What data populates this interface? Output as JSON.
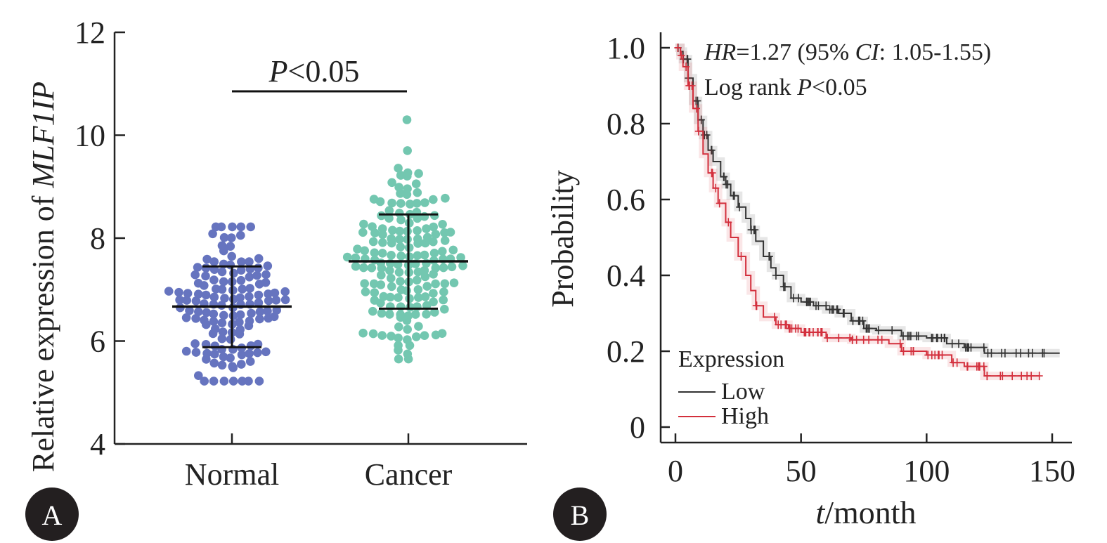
{
  "chart_data": [
    {
      "panel_label": "A",
      "type": "scatter",
      "ylabel_prefix": "Relative expression of ",
      "ylabel_gene": "MLF1IP",
      "categories": [
        "Normal",
        "Cancer"
      ],
      "yticks": [
        "4",
        "6",
        "8",
        "10",
        "12"
      ],
      "ylim": [
        4,
        12
      ],
      "stat": {
        "p_italic": "P",
        "p_rest": "<0.05"
      },
      "groups": [
        {
          "name": "Normal",
          "color": "#6674bf",
          "mean": 6.67,
          "sd_low": 5.88,
          "sd_high": 7.45,
          "min": 5.22,
          "max": 8.22,
          "n": 140
        },
        {
          "name": "Cancer",
          "color": "#73c7b0",
          "mean": 7.55,
          "sd_low": 6.63,
          "sd_high": 8.46,
          "min": 5.65,
          "max": 10.3,
          "n": 170
        }
      ]
    },
    {
      "panel_label": "B",
      "type": "line",
      "ylabel": "Probability",
      "xlabel_italic": "t",
      "xlabel_rest": "/month",
      "xticks": [
        "0",
        "50",
        "100",
        "150"
      ],
      "yticks": [
        "0",
        "0.2",
        "0.4",
        "0.6",
        "0.8",
        "1.0"
      ],
      "xlim": [
        0,
        155
      ],
      "ylim": [
        0,
        1.0
      ],
      "annotations": {
        "hr_italic": "HR",
        "hr_mid": "=1.27 (95% ",
        "ci_italic": "CI",
        "ci_rest": ": 1.05-1.55)",
        "logrank_prefix": "Log rank ",
        "logrank_italic": "P",
        "logrank_rest": "<0.05"
      },
      "legend": {
        "title": "Expression",
        "placement": "bottom-left"
      },
      "series": [
        {
          "name": "Low",
          "color": "#333333",
          "points": [
            [
              0,
              1.0
            ],
            [
              2,
              0.99
            ],
            [
              3,
              0.97
            ],
            [
              5,
              0.92
            ],
            [
              7,
              0.86
            ],
            [
              9,
              0.81
            ],
            [
              11,
              0.77
            ],
            [
              13,
              0.73
            ],
            [
              15,
              0.7
            ],
            [
              18,
              0.66
            ],
            [
              20,
              0.64
            ],
            [
              22,
              0.61
            ],
            [
              25,
              0.58
            ],
            [
              28,
              0.55
            ],
            [
              30,
              0.52
            ],
            [
              32,
              0.49
            ],
            [
              35,
              0.45
            ],
            [
              38,
              0.42
            ],
            [
              40,
              0.4
            ],
            [
              43,
              0.37
            ],
            [
              46,
              0.34
            ],
            [
              50,
              0.33
            ],
            [
              55,
              0.32
            ],
            [
              60,
              0.31
            ],
            [
              65,
              0.3
            ],
            [
              70,
              0.28
            ],
            [
              75,
              0.26
            ],
            [
              80,
              0.255
            ],
            [
              90,
              0.24
            ],
            [
              100,
              0.235
            ],
            [
              108,
              0.22
            ],
            [
              115,
              0.21
            ],
            [
              123,
              0.195
            ],
            [
              153,
              0.195
            ]
          ]
        },
        {
          "name": "High",
          "color": "#d32f3c",
          "points": [
            [
              0,
              1.0
            ],
            [
              2,
              0.98
            ],
            [
              3,
              0.95
            ],
            [
              5,
              0.9
            ],
            [
              7,
              0.84
            ],
            [
              9,
              0.78
            ],
            [
              11,
              0.72
            ],
            [
              13,
              0.67
            ],
            [
              15,
              0.63
            ],
            [
              17,
              0.59
            ],
            [
              20,
              0.54
            ],
            [
              22,
              0.5
            ],
            [
              25,
              0.45
            ],
            [
              28,
              0.4
            ],
            [
              30,
              0.36
            ],
            [
              32,
              0.32
            ],
            [
              35,
              0.29
            ],
            [
              40,
              0.27
            ],
            [
              45,
              0.26
            ],
            [
              50,
              0.25
            ],
            [
              60,
              0.235
            ],
            [
              70,
              0.23
            ],
            [
              80,
              0.23
            ],
            [
              85,
              0.22
            ],
            [
              90,
              0.2
            ],
            [
              100,
              0.19
            ],
            [
              110,
              0.17
            ],
            [
              115,
              0.16
            ],
            [
              123,
              0.135
            ],
            [
              145,
              0.135
            ]
          ]
        }
      ]
    }
  ]
}
